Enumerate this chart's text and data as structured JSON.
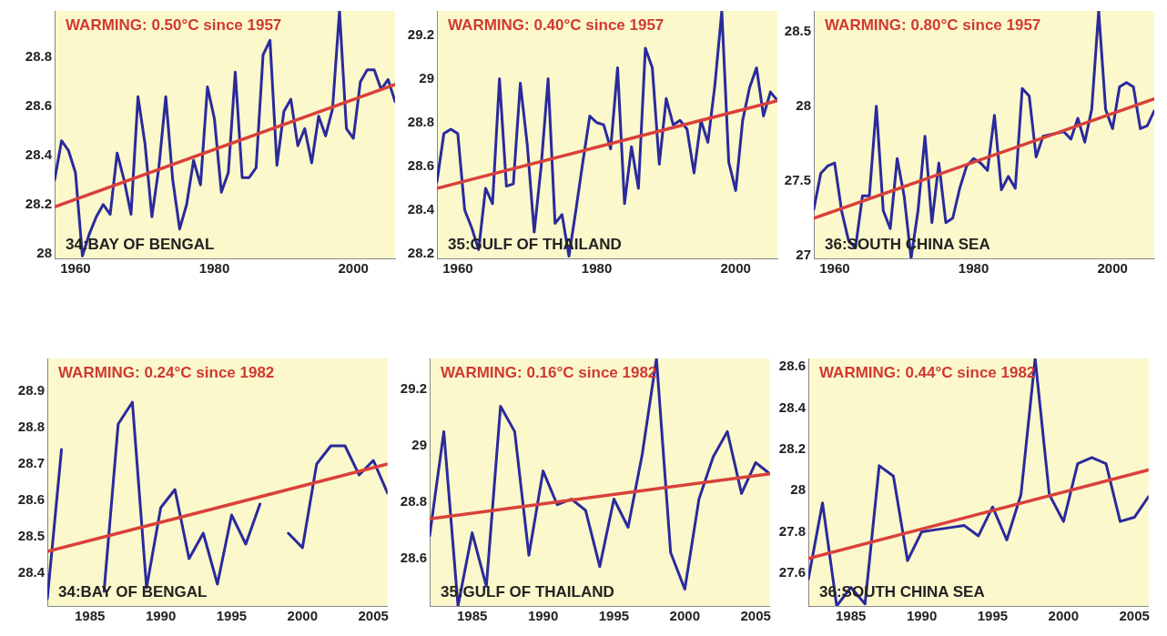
{
  "chart_data": [
    {
      "type": "line",
      "annotations": [
        "WARMING: 0.50°C since 1957",
        "34:BAY OF BENGAL"
      ],
      "x": [
        1957,
        1958,
        1959,
        1960,
        1961,
        1962,
        1963,
        1964,
        1965,
        1966,
        1967,
        1968,
        1969,
        1970,
        1971,
        1972,
        1973,
        1974,
        1975,
        1976,
        1977,
        1978,
        1979,
        1980,
        1981,
        1982,
        1983,
        1984,
        1985,
        1986,
        1987,
        1988,
        1989,
        1990,
        1991,
        1992,
        1993,
        1994,
        1995,
        1996,
        1997,
        1998,
        1999,
        2000,
        2001,
        2002,
        2003,
        2004,
        2005,
        2006
      ],
      "series": [
        {
          "color": "#2a2a9c",
          "values": [
            28.3,
            28.46,
            28.42,
            28.33,
            27.99,
            28.08,
            28.15,
            28.2,
            28.16,
            28.41,
            28.3,
            28.16,
            28.64,
            28.45,
            28.15,
            28.35,
            28.64,
            28.3,
            28.1,
            28.2,
            28.38,
            28.28,
            28.68,
            28.55,
            28.25,
            28.33,
            28.74,
            28.31,
            28.31,
            28.35,
            28.81,
            28.87,
            28.36,
            28.58,
            28.63,
            28.44,
            28.51,
            28.37,
            28.56,
            28.48,
            28.59,
            28.99,
            28.51,
            28.47,
            28.7,
            28.75,
            28.75,
            28.67,
            28.71,
            28.62
          ]
        },
        {
          "type": "line",
          "x": [
            1957,
            2006
          ],
          "color": "#d9413a",
          "values": [
            28.19,
            28.69
          ]
        }
      ],
      "xlim": [
        1957,
        2006
      ],
      "xticks": [
        1960,
        1980,
        2000
      ],
      "ylim": [
        27.98,
        28.99
      ],
      "yticks": [
        28,
        28.2,
        28.4,
        28.6,
        28.8
      ]
    },
    {
      "type": "line",
      "annotations": [
        "WARMING: 0.40°C since 1957",
        "35:GULF OF THAILAND"
      ],
      "x": [
        1957,
        1958,
        1959,
        1960,
        1961,
        1962,
        1963,
        1964,
        1965,
        1966,
        1967,
        1968,
        1969,
        1970,
        1971,
        1972,
        1973,
        1974,
        1975,
        1976,
        1977,
        1978,
        1979,
        1980,
        1981,
        1982,
        1983,
        1984,
        1985,
        1986,
        1987,
        1988,
        1989,
        1990,
        1991,
        1992,
        1993,
        1994,
        1995,
        1996,
        1997,
        1998,
        1999,
        2000,
        2001,
        2002,
        2003,
        2004,
        2005,
        2006
      ],
      "series": [
        {
          "color": "#2a2a9c",
          "values": [
            28.53,
            28.75,
            28.77,
            28.75,
            28.4,
            28.32,
            28.22,
            28.5,
            28.43,
            29.0,
            28.51,
            28.52,
            28.98,
            28.7,
            28.3,
            28.6,
            29.0,
            28.34,
            28.38,
            28.19,
            28.4,
            28.62,
            28.83,
            28.8,
            28.79,
            28.68,
            29.05,
            28.43,
            28.69,
            28.5,
            29.14,
            29.05,
            28.61,
            28.91,
            28.79,
            28.81,
            28.77,
            28.57,
            28.81,
            28.71,
            28.97,
            29.31,
            28.62,
            28.49,
            28.81,
            28.96,
            29.05,
            28.83,
            28.94,
            28.9
          ]
        },
        {
          "type": "line",
          "x": [
            1957,
            2006
          ],
          "color": "#d9413a",
          "values": [
            28.5,
            28.9
          ]
        }
      ],
      "xlim": [
        1957,
        2006
      ],
      "xticks": [
        1960,
        1980,
        2000
      ],
      "ylim": [
        28.18,
        29.31
      ],
      "yticks": [
        28.2,
        28.4,
        28.6,
        28.8,
        29,
        29.2
      ]
    },
    {
      "type": "line",
      "annotations": [
        "WARMING: 0.80°C since 1957",
        "36:SOUTH CHINA SEA"
      ],
      "x": [
        1957,
        1958,
        1959,
        1960,
        1961,
        1962,
        1963,
        1964,
        1965,
        1966,
        1967,
        1968,
        1969,
        1970,
        1971,
        1972,
        1973,
        1974,
        1975,
        1976,
        1977,
        1978,
        1979,
        1980,
        1981,
        1982,
        1983,
        1984,
        1985,
        1986,
        1987,
        1988,
        1989,
        1990,
        1991,
        1992,
        1993,
        1994,
        1995,
        1996,
        1997,
        1998,
        1999,
        2000,
        2001,
        2002,
        2003,
        2004,
        2005,
        2006
      ],
      "series": [
        {
          "color": "#2a2a9c",
          "values": [
            27.31,
            27.55,
            27.6,
            27.62,
            27.3,
            27.1,
            27.05,
            27.4,
            27.4,
            28.0,
            27.3,
            27.18,
            27.65,
            27.4,
            26.98,
            27.3,
            27.8,
            27.22,
            27.62,
            27.22,
            27.25,
            27.45,
            27.6,
            27.65,
            27.62,
            27.57,
            27.94,
            27.44,
            27.53,
            27.45,
            28.12,
            28.07,
            27.66,
            27.8,
            27.81,
            27.82,
            27.83,
            27.78,
            27.92,
            27.76,
            27.98,
            28.64,
            27.98,
            27.85,
            28.13,
            28.16,
            28.13,
            27.85,
            27.87,
            27.97
          ]
        },
        {
          "type": "line",
          "x": [
            1957,
            2006
          ],
          "color": "#d9413a",
          "values": [
            27.25,
            28.05
          ]
        }
      ],
      "xlim": [
        1957,
        2006
      ],
      "xticks": [
        1960,
        1980,
        2000
      ],
      "ylim": [
        26.98,
        28.64
      ],
      "yticks": [
        27,
        27.5,
        28,
        28.5
      ]
    },
    {
      "type": "line",
      "annotations": [
        "WARMING: 0.24°C since 1982",
        "34:BAY OF BENGAL"
      ],
      "x": [
        1982,
        1983,
        1984,
        1985,
        1986,
        1987,
        1988,
        1989,
        1990,
        1991,
        1992,
        1993,
        1994,
        1995,
        1996,
        1997,
        1998,
        1999,
        2000,
        2001,
        2002,
        2003,
        2004,
        2005,
        2006
      ],
      "series": [
        {
          "color": "#2a2a9c",
          "values": [
            28.33,
            28.74,
            null,
            null,
            28.35,
            28.81,
            28.87,
            28.36,
            28.58,
            28.63,
            28.44,
            28.51,
            28.37,
            28.56,
            28.48,
            28.59,
            null,
            28.51,
            28.47,
            28.7,
            28.75,
            28.75,
            28.67,
            28.71,
            28.62
          ]
        },
        {
          "type": "line",
          "x": [
            1982,
            2006
          ],
          "color": "#d9413a",
          "values": [
            28.46,
            28.7
          ]
        }
      ],
      "xlim": [
        1982,
        2006
      ],
      "xticks": [
        1985,
        1990,
        1995,
        2000,
        2005
      ],
      "ylim": [
        28.31,
        28.99
      ],
      "yticks": [
        28.4,
        28.5,
        28.6,
        28.7,
        28.8,
        28.9
      ]
    },
    {
      "type": "line",
      "annotations": [
        "WARMING: 0.16°C since 1982",
        "35:GULF OF THAILAND"
      ],
      "x": [
        1982,
        1983,
        1984,
        1985,
        1986,
        1987,
        1988,
        1989,
        1990,
        1991,
        1992,
        1993,
        1994,
        1995,
        1996,
        1997,
        1998,
        1999,
        2000,
        2001,
        2002,
        2003,
        2004,
        2005,
        2006
      ],
      "series": [
        {
          "color": "#2a2a9c",
          "values": [
            28.68,
            29.05,
            28.43,
            28.69,
            28.5,
            29.14,
            29.05,
            28.61,
            28.91,
            28.79,
            28.81,
            28.77,
            28.57,
            28.81,
            28.71,
            28.97,
            29.31,
            28.62,
            28.49,
            28.81,
            28.96,
            29.05,
            28.83,
            28.94,
            28.9
          ]
        },
        {
          "type": "line",
          "x": [
            1982,
            2006
          ],
          "color": "#d9413a",
          "values": [
            28.74,
            28.9
          ]
        }
      ],
      "xlim": [
        1982,
        2006
      ],
      "xticks": [
        1985,
        1990,
        1995,
        2000,
        2005
      ],
      "ylim": [
        28.43,
        29.31
      ],
      "yticks": [
        28.6,
        28.8,
        29,
        29.2
      ]
    },
    {
      "type": "line",
      "annotations": [
        "WARMING: 0.44°C since 1982",
        "36:SOUTH CHINA SEA"
      ],
      "x": [
        1982,
        1983,
        1984,
        1985,
        1986,
        1987,
        1988,
        1989,
        1990,
        1991,
        1992,
        1993,
        1994,
        1995,
        1996,
        1997,
        1998,
        1999,
        2000,
        2001,
        2002,
        2003,
        2004,
        2005,
        2006
      ],
      "series": [
        {
          "color": "#2a2a9c",
          "values": [
            27.57,
            27.94,
            27.44,
            27.53,
            27.45,
            28.12,
            28.07,
            27.66,
            27.8,
            27.81,
            27.82,
            27.83,
            27.78,
            27.92,
            27.76,
            27.98,
            28.64,
            27.98,
            27.85,
            28.13,
            28.16,
            28.13,
            27.85,
            27.87,
            27.97
          ]
        },
        {
          "type": "line",
          "x": [
            1982,
            2006
          ],
          "color": "#d9413a",
          "values": [
            27.67,
            28.1
          ]
        }
      ],
      "xlim": [
        1982,
        2006
      ],
      "xticks": [
        1985,
        1990,
        1995,
        2000,
        2005
      ],
      "ylim": [
        27.44,
        28.64
      ],
      "yticks": [
        27.6,
        27.8,
        28,
        28.2,
        28.4,
        28.6
      ]
    }
  ]
}
